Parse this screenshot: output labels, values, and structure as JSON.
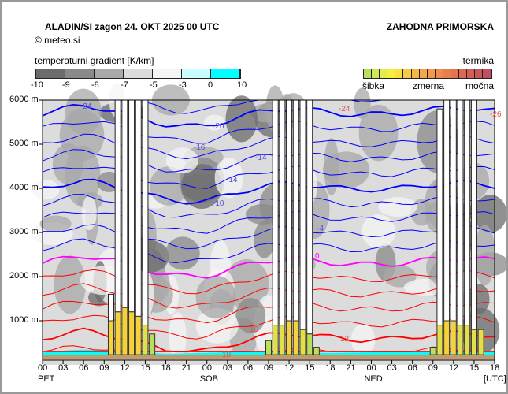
{
  "header": {
    "title": "ALADIN/SI  zagon 24. OKT 2025 00 UTC",
    "copyright": "©  meteo.si",
    "region": "ZAHODNA PRIMORSKA"
  },
  "gradient_legend": {
    "title": "temperaturni gradient [K/km]",
    "ticks": [
      "-10",
      "-9",
      "-8",
      "-7",
      "-5",
      "-3",
      "0",
      "10"
    ],
    "colors": [
      "#6b6b6b",
      "#8a8a8a",
      "#a8a8a8",
      "#dcdcdc",
      "#f5f5f5",
      "#c8ffff",
      "#00ffff"
    ]
  },
  "thermal_legend": {
    "title": "termika",
    "labels": [
      "šibka",
      "zmerna",
      "močna"
    ],
    "colors": [
      "#b8e05a",
      "#cde85a",
      "#e2ec4f",
      "#f5ee3c",
      "#f8e040",
      "#f6cb45",
      "#f5b848",
      "#f4a748",
      "#f29a4a",
      "#ee8c4b",
      "#e8804e",
      "#e27550",
      "#dc6a52",
      "#d35f56",
      "#c9565a",
      "#c24f5f"
    ]
  },
  "chart_data": {
    "type": "time-height cross-section",
    "title": "ALADIN/SI  zagon 24. OKT 2025 00 UTC",
    "ylabel": "m",
    "ylim": [
      0,
      6000
    ],
    "yticks": [
      "1000 m",
      "2000 m",
      "3000 m",
      "4000 m",
      "5000 m",
      "6000 m"
    ],
    "xlabel": "[UTC]",
    "xlim_hours": [
      0,
      66
    ],
    "xticks": [
      "00",
      "03",
      "06",
      "09",
      "12",
      "15",
      "18",
      "21",
      "00",
      "03",
      "06",
      "09",
      "12",
      "15",
      "18",
      "21",
      "00",
      "03",
      "06",
      "09",
      "12",
      "15",
      "18"
    ],
    "day_labels": [
      {
        "hour": 0,
        "label": "PET"
      },
      {
        "hour": 24,
        "label": "SOB"
      },
      {
        "hour": 48,
        "label": "NED"
      }
    ],
    "zero_isotherm": {
      "hours": [
        0,
        6,
        12,
        18,
        24,
        30,
        36,
        42,
        48,
        54,
        60,
        66
      ],
      "height_m": [
        2300,
        2350,
        2250,
        2150,
        2100,
        2200,
        2300,
        2350,
        2400,
        2350,
        2300,
        2300
      ]
    },
    "isotherm_step_c": 2,
    "isotherm_labels": [
      "-24",
      "-20",
      "-18",
      "-16",
      "-14",
      "-10",
      "-4",
      "0",
      "10",
      "12",
      "10",
      "-24",
      "-26"
    ],
    "thermals": [
      {
        "hour": 10,
        "thermal_top_m": 1000,
        "cloud_top_m": 1600
      },
      {
        "hour": 11,
        "thermal_top_m": 1200,
        "cloud_top_m": 6000
      },
      {
        "hour": 12,
        "thermal_top_m": 1300,
        "cloud_top_m": 6000
      },
      {
        "hour": 13,
        "thermal_top_m": 1200,
        "cloud_top_m": 6000
      },
      {
        "hour": 14,
        "thermal_top_m": 1100,
        "cloud_top_m": 6000
      },
      {
        "hour": 15,
        "thermal_top_m": 900,
        "cloud_top_m": 6000
      },
      {
        "hour": 16,
        "thermal_top_m": 700,
        "cloud_top_m": 0
      },
      {
        "hour": 33,
        "thermal_top_m": 550,
        "cloud_top_m": 0
      },
      {
        "hour": 34,
        "thermal_top_m": 900,
        "cloud_top_m": 6000
      },
      {
        "hour": 35,
        "thermal_top_m": 900,
        "cloud_top_m": 6000
      },
      {
        "hour": 36,
        "thermal_top_m": 1000,
        "cloud_top_m": 6000
      },
      {
        "hour": 37,
        "thermal_top_m": 1000,
        "cloud_top_m": 6000
      },
      {
        "hour": 38,
        "thermal_top_m": 800,
        "cloud_top_m": 6000
      },
      {
        "hour": 39,
        "thermal_top_m": 700,
        "cloud_top_m": 6000
      },
      {
        "hour": 40,
        "thermal_top_m": 400,
        "cloud_top_m": 0
      },
      {
        "hour": 57,
        "thermal_top_m": 400,
        "cloud_top_m": 0
      },
      {
        "hour": 58,
        "thermal_top_m": 900,
        "cloud_top_m": 5800
      },
      {
        "hour": 59,
        "thermal_top_m": 1000,
        "cloud_top_m": 6000
      },
      {
        "hour": 60,
        "thermal_top_m": 1000,
        "cloud_top_m": 6000
      },
      {
        "hour": 61,
        "thermal_top_m": 900,
        "cloud_top_m": 6000
      },
      {
        "hour": 62,
        "thermal_top_m": 900,
        "cloud_top_m": 6000
      },
      {
        "hour": 63,
        "thermal_top_m": 800,
        "cloud_top_m": 6000
      },
      {
        "hour": 64,
        "thermal_top_m": 800,
        "cloud_top_m": 0
      }
    ]
  }
}
